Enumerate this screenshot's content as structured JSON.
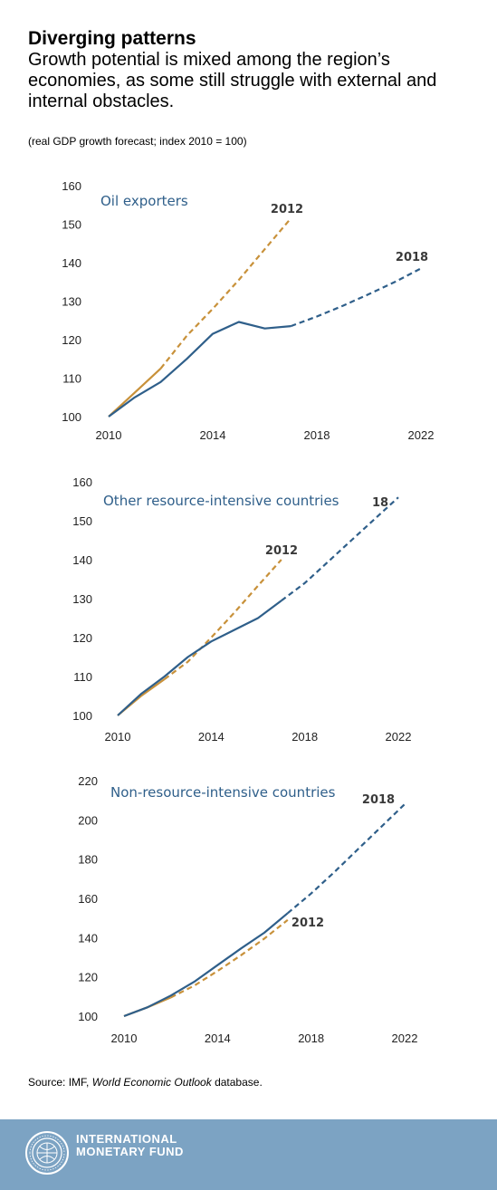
{
  "header": {
    "title": "Diverging patterns",
    "subtitle": "Growth potential is mixed among the region’s economies, as some still struggle with external and internal obstacles.",
    "units": "(real GDP growth forecast; index 2010 = 100)"
  },
  "colors": {
    "series_2018": "#2f5f8a",
    "series_2012": "#c8913a"
  },
  "chart_data": [
    {
      "type": "line",
      "panel_label": "Oil exporters",
      "xticks": [
        "2010",
        "2014",
        "2018",
        "2022"
      ],
      "xlim": [
        2010,
        2022
      ],
      "ylim": [
        100,
        160
      ],
      "yticks": [
        100,
        110,
        120,
        130,
        140,
        150,
        160
      ],
      "series": [
        {
          "name": "2018",
          "solid": {
            "x": [
              2010,
              2011,
              2012,
              2013,
              2014,
              2015,
              2016,
              2017
            ],
            "y": [
              100,
              105,
              109,
              115,
              121.5,
              124.6,
              122.9,
              123.5
            ]
          },
          "dashed": {
            "x": [
              2017,
              2018,
              2019,
              2020,
              2021,
              2022
            ],
            "y": [
              123.5,
              126,
              128.8,
              131.8,
              135,
              138.5
            ]
          }
        },
        {
          "name": "2012",
          "solid": {
            "x": [
              2010,
              2011,
              2012
            ],
            "y": [
              100,
              106.2,
              112.5
            ]
          },
          "dashed": {
            "x": [
              2012,
              2013,
              2014,
              2015,
              2016,
              2017
            ],
            "y": [
              112.5,
              121,
              128,
              135.5,
              143.5,
              151.5
            ]
          }
        }
      ]
    },
    {
      "type": "line",
      "panel_label": "Other resource-intensive countries",
      "xticks": [
        "2010",
        "2014",
        "2018",
        "2022"
      ],
      "xlim": [
        2010,
        2022
      ],
      "ylim": [
        100,
        160
      ],
      "yticks": [
        100,
        110,
        120,
        130,
        140,
        150,
        160
      ],
      "series": [
        {
          "name": "18",
          "solid": {
            "x": [
              2010,
              2011,
              2012,
              2013,
              2014,
              2015,
              2016,
              2017
            ],
            "y": [
              100,
              105.5,
              110,
              115,
              119,
              122,
              125,
              129.5
            ]
          },
          "dashed": {
            "x": [
              2017,
              2018,
              2019,
              2020,
              2021,
              2022
            ],
            "y": [
              129.5,
              134,
              139.5,
              145,
              150.5,
              156
            ]
          }
        },
        {
          "name": "2012",
          "solid": {
            "x": [
              2010,
              2011,
              2012
            ],
            "y": [
              100,
              105,
              109.3
            ]
          },
          "dashed": {
            "x": [
              2012,
              2013,
              2014,
              2015,
              2016,
              2017
            ],
            "y": [
              109.3,
              113.8,
              120,
              126.5,
              133.3,
              140
            ]
          }
        }
      ]
    },
    {
      "type": "line",
      "panel_label": "Non-resource-intensive countries",
      "xticks": [
        "2010",
        "2014",
        "2018",
        "2022"
      ],
      "xlim": [
        2010,
        2022
      ],
      "ylim": [
        100,
        220
      ],
      "yticks": [
        100,
        120,
        140,
        160,
        180,
        200,
        220
      ],
      "series": [
        {
          "name": "2018",
          "solid": {
            "x": [
              2010,
              2011,
              2012,
              2013,
              2014,
              2015,
              2016,
              2017
            ],
            "y": [
              100,
              104.5,
              110.5,
              117.5,
              126,
              134.5,
              142.5,
              152.5
            ]
          },
          "dashed": {
            "x": [
              2017,
              2018,
              2019,
              2020,
              2021,
              2022
            ],
            "y": [
              152.5,
              162.5,
              173.5,
              185,
              196.5,
              208
            ]
          }
        },
        {
          "name": "2012",
          "solid": {
            "x": [
              2010,
              2011,
              2012
            ],
            "y": [
              100,
              104.5,
              109.5
            ]
          },
          "dashed": {
            "x": [
              2012,
              2013,
              2014,
              2015,
              2016,
              2017
            ],
            "y": [
              109.5,
              115.5,
              123,
              131,
              139.5,
              149
            ]
          }
        }
      ]
    }
  ],
  "source": {
    "prefix": "Source: IMF, ",
    "italic": "World Economic Outlook",
    "suffix": " database."
  },
  "footer": {
    "org_line1": "INTERNATIONAL",
    "org_line2": "MONETARY FUND"
  }
}
